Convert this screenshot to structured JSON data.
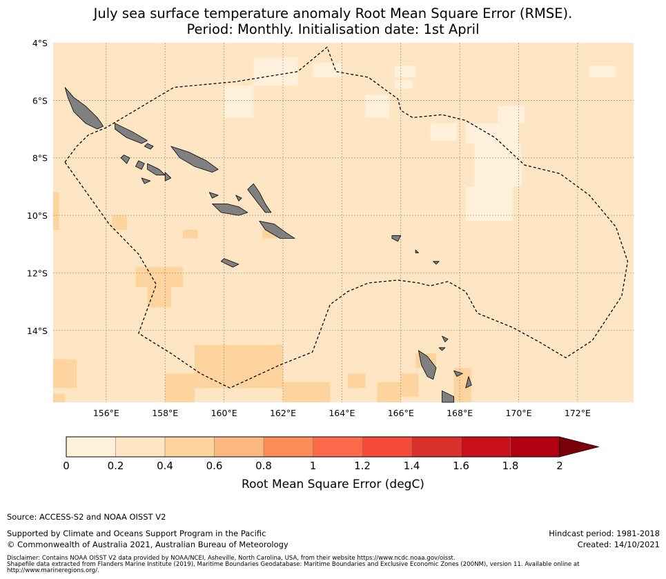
{
  "title": {
    "line1": "July sea surface temperature anomaly Root Mean Square Error (RMSE).",
    "line2": "Period: Monthly. Initialisation date: 1st April"
  },
  "map": {
    "extent": {
      "lon_min": 154.2,
      "lon_max": 173.9,
      "lat_min": -16.5,
      "lat_max": -4.0
    },
    "background_color": "#fee6c5",
    "land_color": "#808080",
    "lat_ticks": [
      {
        "value": -4,
        "label": "4°S"
      },
      {
        "value": -6,
        "label": "6°S"
      },
      {
        "value": -8,
        "label": "8°S"
      },
      {
        "value": -10,
        "label": "10°S"
      },
      {
        "value": -12,
        "label": "12°S"
      },
      {
        "value": -14,
        "label": "14°S"
      }
    ],
    "lon_ticks": [
      {
        "value": 156,
        "label": "156°E"
      },
      {
        "value": 158,
        "label": "158°E"
      },
      {
        "value": 160,
        "label": "160°E"
      },
      {
        "value": 162,
        "label": "162°E"
      },
      {
        "value": 164,
        "label": "164°E"
      },
      {
        "value": 166,
        "label": "166°E"
      },
      {
        "value": 168,
        "label": "168°E"
      },
      {
        "value": 170,
        "label": "170°E"
      },
      {
        "value": 172,
        "label": "172°E"
      }
    ]
  },
  "colorbar": {
    "title": "Root Mean Square Error (degC)",
    "ticks": [
      "0",
      "0.2",
      "0.4",
      "0.6",
      "0.8",
      "1",
      "1.2",
      "1.4",
      "1.6",
      "1.8",
      "2"
    ],
    "colors": [
      "#fff0dc",
      "#fee6c5",
      "#fdd49e",
      "#fdb882",
      "#fc8d59",
      "#fb6b4b",
      "#f44b3a",
      "#d9302a",
      "#c80f1c",
      "#b00012",
      "#7a0008"
    ],
    "extend": "max"
  },
  "footer": {
    "source": "Source: ACCESS-S2 and NOAA OISST V2",
    "supported": "Supported by Climate and Oceans Support Program in the Pacific",
    "copyright": "© Commonwealth of Australia 2021, Australian Bureau of Meteorology",
    "hindcast": "Hindcast period: 1981-2018",
    "created": "Created: 14/10/2021",
    "disclaimer1": "Disclaimer: Contains NOAA OISST V2 data provided by NOAA/NCEI, Asheville, North Carolina, USA, from their website https://www.ncdc.noaa.gov/oisst.",
    "disclaimer2": "Shapefile data extracted from Flanders Marine Institute (2019), Maritime Boundaries Geodatabase: Maritime Boundaries and Exclusive Economic Zones (200NM), version 11. Available online at",
    "disclaimer3": "http://www.marineregions.org/."
  }
}
